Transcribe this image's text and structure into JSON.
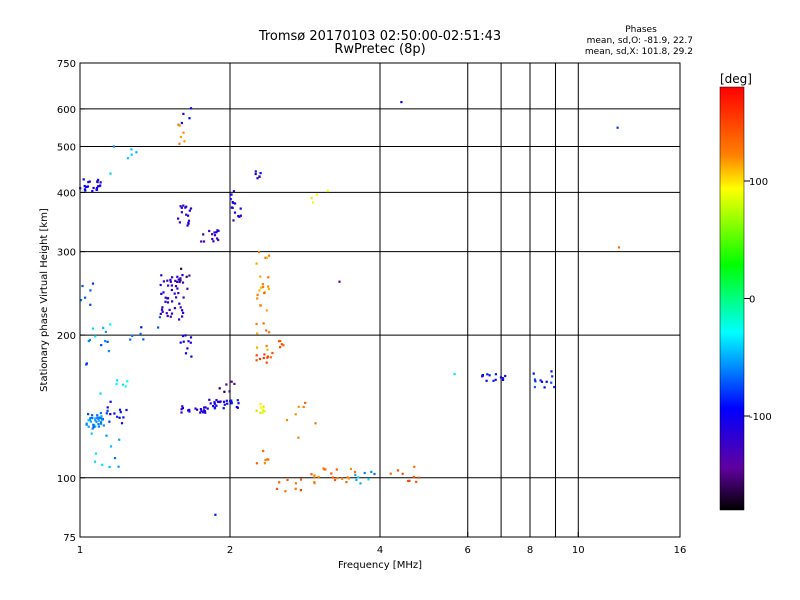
{
  "chart_data": {
    "type": "scatter",
    "title": "Tromsø 20170103 02:50:00-02:51:43",
    "subtitle": "RwPretec (8p)",
    "xlabel": "Frequency [MHz]",
    "ylabel": "Stationary phase Virtual Height [km]",
    "x_scale": "log",
    "y_scale": "log",
    "xlim": [
      1,
      16
    ],
    "ylim": [
      75,
      750
    ],
    "x_ticks": [
      1,
      2,
      4,
      6,
      8,
      10,
      16
    ],
    "x_tick_labels": [
      "1",
      "2",
      "4",
      "6",
      "8",
      "10",
      "16"
    ],
    "x_gridlines": [
      2,
      4,
      6,
      7,
      8,
      9,
      10
    ],
    "y_ticks": [
      75,
      100,
      200,
      300,
      400,
      500,
      600,
      750
    ],
    "y_tick_labels": [
      "75",
      "100",
      "200",
      "300",
      "400",
      "500",
      "600",
      "750"
    ],
    "y_gridlines": [
      100,
      200,
      300,
      400,
      500,
      600
    ],
    "grid": true,
    "stats": {
      "heading": "Phases",
      "line_o": "mean, sd,O: -81.9, 22.7",
      "line_x": "mean, sd,X: 101.8, 29.2"
    },
    "colorbar": {
      "label": "[deg]",
      "range": [
        -180,
        180
      ],
      "ticks": [
        100,
        0,
        -100
      ],
      "tick_labels": [
        "100",
        "0",
        "-100"
      ]
    },
    "clusters": [
      {
        "f": [
          1.0,
          1.1
        ],
        "h": [
          400,
          430
        ],
        "phase": -110,
        "n": 22
      },
      {
        "f": [
          1.03,
          1.12
        ],
        "h": [
          127,
          137
        ],
        "phase": -70,
        "n": 34
      },
      {
        "f": [
          1.1,
          1.25
        ],
        "h": [
          130,
          145
        ],
        "phase": -100,
        "n": 14
      },
      {
        "f": [
          1.0,
          1.2
        ],
        "h": [
          105,
          125
        ],
        "phase": -60,
        "n": 10
      },
      {
        "f": [
          1.0,
          1.15
        ],
        "h": [
          170,
          200
        ],
        "phase": -75,
        "n": 8
      },
      {
        "f": [
          1.0,
          1.1
        ],
        "h": [
          230,
          260
        ],
        "phase": -80,
        "n": 6
      },
      {
        "f": [
          1.05,
          1.15
        ],
        "h": [
          195,
          215
        ],
        "phase": -50,
        "n": 5
      },
      {
        "f": [
          1.05,
          1.25
        ],
        "h": [
          150,
          165
        ],
        "phase": -40,
        "n": 6
      },
      {
        "f": [
          1.15,
          1.3
        ],
        "h": [
          430,
          520
        ],
        "phase": -65,
        "n": 6
      },
      {
        "f": [
          1.25,
          1.45
        ],
        "h": [
          195,
          225
        ],
        "phase": -85,
        "n": 7
      },
      {
        "f": [
          1.45,
          1.62
        ],
        "h": [
          215,
          270
        ],
        "phase": -120,
        "n": 45
      },
      {
        "f": [
          1.55,
          1.66
        ],
        "h": [
          250,
          280
        ],
        "phase": -150,
        "n": 8
      },
      {
        "f": [
          1.57,
          1.67
        ],
        "h": [
          340,
          380
        ],
        "phase": -120,
        "n": 16
      },
      {
        "f": [
          1.55,
          1.65
        ],
        "h": [
          500,
          560
        ],
        "phase": 110,
        "n": 6
      },
      {
        "f": [
          1.6,
          1.67
        ],
        "h": [
          540,
          610
        ],
        "phase": -110,
        "n": 4
      },
      {
        "f": [
          1.58,
          1.68
        ],
        "h": [
          180,
          200
        ],
        "phase": -115,
        "n": 10
      },
      {
        "f": [
          1.58,
          1.8
        ],
        "h": [
          137,
          142
        ],
        "phase": -120,
        "n": 18
      },
      {
        "f": [
          1.8,
          2.1
        ],
        "h": [
          140,
          147
        ],
        "phase": -105,
        "n": 26
      },
      {
        "f": [
          1.75,
          1.95
        ],
        "h": [
          315,
          335
        ],
        "phase": -125,
        "n": 14
      },
      {
        "f": [
          2.0,
          2.12
        ],
        "h": [
          345,
          410
        ],
        "phase": -115,
        "n": 14
      },
      {
        "f": [
          1.9,
          2.05
        ],
        "h": [
          150,
          160
        ],
        "phase": -160,
        "n": 6
      },
      {
        "f": [
          2.25,
          2.32
        ],
        "h": [
          420,
          450
        ],
        "phase": -115,
        "n": 6
      },
      {
        "f": [
          2.25,
          2.4
        ],
        "h": [
          185,
          300
        ],
        "phase": 110,
        "n": 28
      },
      {
        "f": [
          2.25,
          2.45
        ],
        "h": [
          175,
          185
        ],
        "phase": 140,
        "n": 10
      },
      {
        "f": [
          2.5,
          2.6
        ],
        "h": [
          185,
          195
        ],
        "phase": 130,
        "n": 5
      },
      {
        "f": [
          2.25,
          2.35
        ],
        "h": [
          135,
          145
        ],
        "phase": 80,
        "n": 8
      },
      {
        "f": [
          2.25,
          2.4
        ],
        "h": [
          105,
          115
        ],
        "phase": 120,
        "n": 6
      },
      {
        "f": [
          2.6,
          3.0
        ],
        "h": [
          120,
          145
        ],
        "phase": 120,
        "n": 7
      },
      {
        "f": [
          2.4,
          2.8
        ],
        "h": [
          92,
          100
        ],
        "phase": 130,
        "n": 8
      },
      {
        "f": [
          2.9,
          3.2
        ],
        "h": [
          360,
          410
        ],
        "phase": 70,
        "n": 4
      },
      {
        "f": [
          2.9,
          3.6
        ],
        "h": [
          97,
          105
        ],
        "phase": 120,
        "n": 20
      },
      {
        "f": [
          3.5,
          4.0
        ],
        "h": [
          97,
          105
        ],
        "phase": -60,
        "n": 8
      },
      {
        "f": [
          4.2,
          4.8
        ],
        "h": [
          98,
          106
        ],
        "phase": 130,
        "n": 9
      },
      {
        "f": [
          6.4,
          7.2
        ],
        "h": [
          160,
          166
        ],
        "phase": -100,
        "n": 14
      },
      {
        "f": [
          8.0,
          9.0
        ],
        "h": [
          155,
          168
        ],
        "phase": -90,
        "n": 12
      },
      {
        "f": [
          4.4,
          4.5
        ],
        "h": [
          620,
          640
        ],
        "phase": -110,
        "n": 1
      },
      {
        "f": [
          11.8,
          12.0
        ],
        "h": [
          540,
          555
        ],
        "phase": -100,
        "n": 1
      },
      {
        "f": [
          11.9,
          12.1
        ],
        "h": [
          300,
          315
        ],
        "phase": 130,
        "n": 1
      },
      {
        "f": [
          3.3,
          3.4
        ],
        "h": [
          250,
          260
        ],
        "phase": -160,
        "n": 1
      },
      {
        "f": [
          5.5,
          5.7
        ],
        "h": [
          165,
          172
        ],
        "phase": -60,
        "n": 1
      },
      {
        "f": [
          1.85,
          1.9
        ],
        "h": [
          82,
          88
        ],
        "phase": -110,
        "n": 1
      }
    ]
  }
}
